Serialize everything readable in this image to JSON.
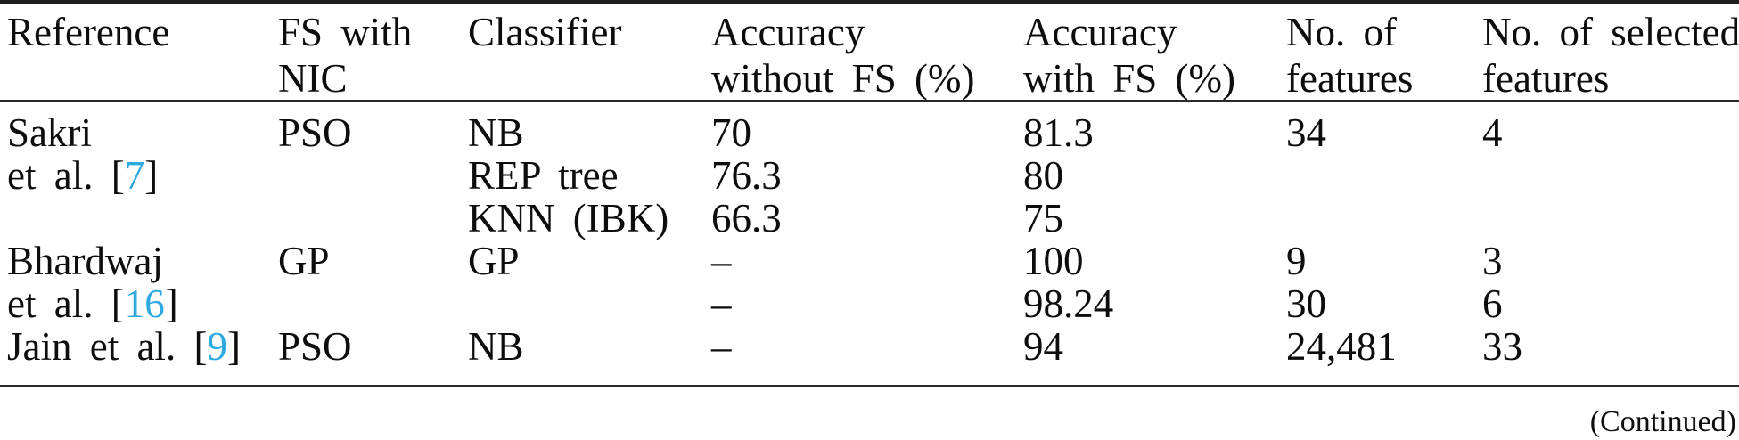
{
  "table": {
    "header": [
      {
        "line1": "Reference",
        "line2": ""
      },
      {
        "line1": "FS with",
        "line2": "NIC"
      },
      {
        "line1": "Classifier",
        "line2": ""
      },
      {
        "line1": "Accuracy",
        "line2": "without FS (%)"
      },
      {
        "line1": "Accuracy",
        "line2": "with FS (%)"
      },
      {
        "line1": "No. of",
        "line2": "features"
      },
      {
        "line1": "No. of selected",
        "line2": "features"
      }
    ],
    "rows": [
      {
        "reference": "Sakri",
        "fs_with_nic": "PSO",
        "classifier": "NB",
        "accuracy_without_fs": "70",
        "accuracy_with_fs": "81.3",
        "num_features": "34",
        "num_selected_features": "4"
      },
      {
        "reference_pre": "et al. [",
        "reference_cite": "7",
        "reference_post": "]",
        "fs_with_nic": "",
        "classifier": "REP tree",
        "accuracy_without_fs": "76.3",
        "accuracy_with_fs": "80",
        "num_features": "",
        "num_selected_features": ""
      },
      {
        "reference": "",
        "fs_with_nic": "",
        "classifier": "KNN (IBK)",
        "accuracy_without_fs": "66.3",
        "accuracy_with_fs": "75",
        "num_features": "",
        "num_selected_features": ""
      },
      {
        "reference": "Bhardwaj",
        "fs_with_nic": "GP",
        "classifier": "GP",
        "accuracy_without_fs": "–",
        "accuracy_with_fs": "100",
        "num_features": "9",
        "num_selected_features": "3"
      },
      {
        "reference_pre": "et al. [",
        "reference_cite": "16",
        "reference_post": "]",
        "fs_with_nic": "",
        "classifier": "",
        "accuracy_without_fs": "–",
        "accuracy_with_fs": "98.24",
        "num_features": "30",
        "num_selected_features": "6"
      },
      {
        "reference_pre": "Jain et al. [",
        "reference_cite": "9",
        "reference_post": "]",
        "fs_with_nic": "PSO",
        "classifier": "NB",
        "accuracy_without_fs": "–",
        "accuracy_with_fs": "94",
        "num_features": "24,481",
        "num_selected_features": "33"
      }
    ]
  },
  "footer": {
    "continued": "(Continued)"
  },
  "colors": {
    "citation_link": "#2ea9e0",
    "text": "#0d0d0d",
    "rule": "#2a2a2a",
    "background": "#ffffff"
  }
}
